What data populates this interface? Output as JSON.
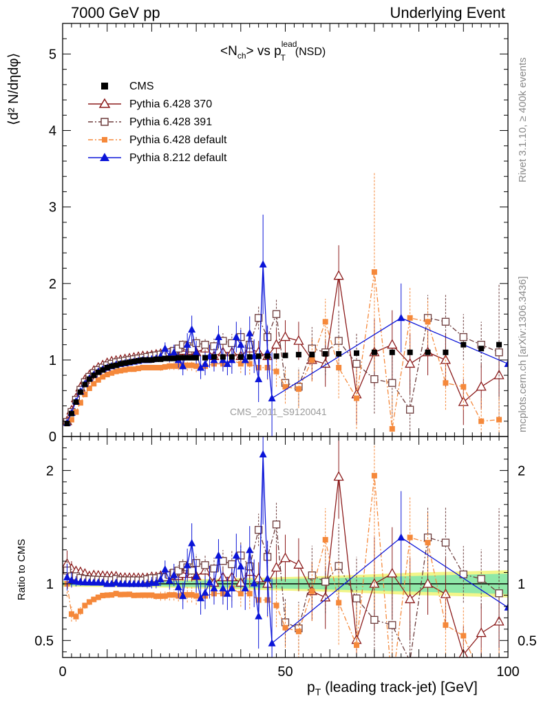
{
  "header": {
    "left": "7000 GeV pp",
    "right": "Underlying Event",
    "rivet": "Rivet 3.1.10, ≥ 400k events",
    "mcplots": "mcplots.cern.ch [arXiv:1306.3436]",
    "watermark": "CMS_2011_S9120041"
  },
  "titles": {
    "main_pre": "<N",
    "main_sub1": "ch",
    "main_mid": "> vs p",
    "main_sup": "lead",
    "main_sub2": "T",
    "main_post": "(NSD)",
    "y_upper": "⟨d² N/dηdφ⟩",
    "y_lower": "Ratio to CMS",
    "x_main": "p",
    "x_sub": "T",
    "x_rest": "(leading track-jet) [GeV]"
  },
  "chart_data": {
    "type": "scatter",
    "xlim": [
      0,
      100
    ],
    "upper": {
      "ylim": [
        0,
        5.4
      ],
      "yticks": [
        "0",
        "1",
        "2",
        "3",
        "4",
        "5"
      ]
    },
    "lower": {
      "ylim": [
        0.35,
        2.3
      ],
      "yticks": [
        "0.5",
        "1",
        "2"
      ]
    },
    "xticks": [
      "0",
      "50",
      "100"
    ],
    "legend": [
      {
        "name": "CMS",
        "color": "#000000",
        "marker": "filled-square",
        "line": "none"
      },
      {
        "name": "Pythia 6.428 370",
        "color": "#8b1a1a",
        "marker": "open-triangle",
        "line": "solid"
      },
      {
        "name": "Pythia 6.428 391",
        "color": "#6b3a3a",
        "marker": "open-square",
        "line": "dashdot"
      },
      {
        "name": "Pythia 6.428 default",
        "color": "#f5883a",
        "marker": "filled-square",
        "line": "dashdot"
      },
      {
        "name": "Pythia 8.212 default",
        "color": "#0a14d8",
        "marker": "filled-triangle",
        "line": "solid"
      }
    ],
    "cms": {
      "x": [
        1,
        2,
        3,
        4,
        5,
        6,
        7,
        8,
        9,
        10,
        11,
        12,
        13,
        14,
        15,
        16,
        17,
        18,
        19,
        20,
        21,
        22,
        23,
        24,
        25,
        26,
        27,
        28,
        29,
        30,
        32,
        34,
        36,
        38,
        40,
        42,
        44,
        46,
        48,
        50,
        53,
        56,
        59,
        62,
        66,
        70,
        74,
        78,
        82,
        86,
        90,
        94,
        98
      ],
      "y": [
        0.17,
        0.3,
        0.45,
        0.58,
        0.68,
        0.75,
        0.8,
        0.84,
        0.87,
        0.9,
        0.92,
        0.93,
        0.95,
        0.96,
        0.97,
        0.98,
        0.99,
        1.0,
        1.0,
        1.0,
        1.01,
        1.01,
        1.02,
        1.02,
        1.02,
        1.03,
        1.03,
        1.03,
        1.03,
        1.03,
        1.03,
        1.04,
        1.04,
        1.04,
        1.04,
        1.04,
        1.05,
        1.05,
        1.05,
        1.06,
        1.07,
        1.07,
        1.08,
        1.08,
        1.09,
        1.1,
        1.1,
        1.1,
        1.1,
        1.1,
        1.2,
        1.15,
        1.2
      ]
    },
    "series": [
      {
        "name": "Pythia 6.428 370",
        "x": [
          1,
          2,
          3,
          4,
          5,
          6,
          7,
          8,
          9,
          10,
          11,
          12,
          13,
          14,
          15,
          16,
          17,
          18,
          19,
          20,
          21,
          22,
          23,
          24,
          25,
          26,
          27,
          28,
          29,
          30,
          32,
          34,
          36,
          38,
          40,
          42,
          44,
          46,
          48,
          50,
          53,
          56,
          59,
          62,
          66,
          70,
          74,
          78,
          82,
          86,
          90,
          94,
          98
        ],
        "y": [
          0.2,
          0.34,
          0.5,
          0.64,
          0.74,
          0.8,
          0.86,
          0.9,
          0.93,
          0.96,
          0.98,
          0.99,
          1.0,
          1.01,
          1.02,
          1.03,
          1.04,
          1.05,
          1.05,
          1.06,
          1.07,
          1.08,
          1.08,
          1.09,
          1.09,
          1.1,
          1.12,
          1.16,
          1.12,
          1.1,
          1.15,
          1.05,
          1.1,
          1.1,
          1.05,
          1.15,
          1.1,
          1.05,
          1.2,
          1.3,
          1.25,
          1.0,
          0.95,
          2.1,
          0.55,
          1.1,
          1.2,
          0.95,
          1.1,
          1.0,
          0.45,
          0.65,
          0.8
        ],
        "err": [
          0.02,
          0.02,
          0.02,
          0.02,
          0.02,
          0.02,
          0.02,
          0.02,
          0.02,
          0.02,
          0.02,
          0.02,
          0.02,
          0.02,
          0.02,
          0.02,
          0.02,
          0.03,
          0.03,
          0.03,
          0.03,
          0.04,
          0.04,
          0.05,
          0.05,
          0.05,
          0.06,
          0.07,
          0.07,
          0.08,
          0.09,
          0.1,
          0.1,
          0.12,
          0.12,
          0.14,
          0.15,
          0.16,
          0.2,
          0.22,
          0.25,
          0.28,
          0.3,
          0.4,
          0.4,
          0.45,
          0.45,
          0.4,
          0.3,
          0.35,
          0.3,
          0.3,
          0.3
        ]
      },
      {
        "name": "Pythia 6.428 391",
        "x": [
          1,
          2,
          3,
          4,
          5,
          6,
          7,
          8,
          9,
          10,
          11,
          12,
          13,
          14,
          15,
          16,
          17,
          18,
          19,
          20,
          21,
          22,
          23,
          24,
          25,
          26,
          27,
          28,
          29,
          30,
          32,
          34,
          36,
          38,
          40,
          42,
          44,
          46,
          48,
          50,
          53,
          56,
          59,
          62,
          66,
          70,
          74,
          78,
          82,
          86,
          90,
          94,
          98
        ],
        "y": [
          0.19,
          0.32,
          0.48,
          0.61,
          0.71,
          0.78,
          0.83,
          0.87,
          0.9,
          0.93,
          0.95,
          0.97,
          0.98,
          0.99,
          1.0,
          1.01,
          1.02,
          1.03,
          1.04,
          1.05,
          1.06,
          1.07,
          1.08,
          1.1,
          1.12,
          1.15,
          1.2,
          1.18,
          1.15,
          1.22,
          1.2,
          1.18,
          1.25,
          1.22,
          1.3,
          1.2,
          1.55,
          1.3,
          1.6,
          0.7,
          0.65,
          1.15,
          1.1,
          1.25,
          0.95,
          0.75,
          0.7,
          0.35,
          1.55,
          1.5,
          1.3,
          1.2,
          1.1
        ],
        "err": [
          0.02,
          0.02,
          0.02,
          0.02,
          0.02,
          0.02,
          0.02,
          0.02,
          0.02,
          0.02,
          0.02,
          0.02,
          0.02,
          0.02,
          0.02,
          0.02,
          0.02,
          0.03,
          0.03,
          0.03,
          0.03,
          0.04,
          0.04,
          0.05,
          0.05,
          0.05,
          0.06,
          0.07,
          0.07,
          0.08,
          0.09,
          0.1,
          0.1,
          0.12,
          0.12,
          0.14,
          0.15,
          0.16,
          0.2,
          0.22,
          0.25,
          0.28,
          0.3,
          0.4,
          0.4,
          0.45,
          0.45,
          0.4,
          0.3,
          0.35,
          0.3,
          0.3,
          0.9
        ]
      },
      {
        "name": "Pythia 6.428 default",
        "x": [
          1,
          2,
          3,
          4,
          5,
          6,
          7,
          8,
          9,
          10,
          11,
          12,
          13,
          14,
          15,
          16,
          17,
          18,
          19,
          20,
          21,
          22,
          23,
          24,
          25,
          26,
          27,
          28,
          29,
          30,
          32,
          34,
          36,
          38,
          40,
          42,
          44,
          46,
          48,
          50,
          53,
          56,
          59,
          62,
          66,
          70,
          74,
          78,
          82,
          86,
          90,
          94,
          98
        ],
        "y": [
          0.17,
          0.22,
          0.32,
          0.44,
          0.55,
          0.63,
          0.69,
          0.74,
          0.78,
          0.81,
          0.83,
          0.85,
          0.86,
          0.87,
          0.88,
          0.88,
          0.89,
          0.9,
          0.9,
          0.9,
          0.9,
          0.9,
          0.91,
          0.92,
          0.92,
          0.92,
          0.93,
          0.93,
          0.93,
          0.92,
          0.92,
          0.95,
          0.95,
          1.0,
          0.95,
          0.95,
          0.9,
          0.9,
          0.85,
          0.65,
          0.62,
          1.0,
          1.5,
          0.9,
          0.5,
          2.15,
          0.1,
          1.55,
          1.5,
          0.7,
          0.65,
          0.2,
          0.22
        ],
        "err": [
          0.02,
          0.02,
          0.02,
          0.02,
          0.02,
          0.02,
          0.02,
          0.02,
          0.02,
          0.02,
          0.02,
          0.02,
          0.02,
          0.02,
          0.02,
          0.02,
          0.02,
          0.03,
          0.03,
          0.03,
          0.03,
          0.04,
          0.04,
          0.05,
          0.05,
          0.05,
          0.06,
          0.07,
          0.07,
          0.08,
          0.09,
          0.1,
          0.1,
          0.12,
          0.12,
          0.14,
          0.15,
          0.16,
          0.2,
          0.22,
          0.25,
          0.28,
          0.3,
          0.4,
          0.4,
          1.3,
          0.45,
          0.4,
          0.3,
          0.35,
          0.3,
          0.3,
          0.3
        ]
      },
      {
        "name": "Pythia 8.212 default",
        "x": [
          1,
          2,
          3,
          4,
          5,
          6,
          7,
          8,
          9,
          10,
          11,
          12,
          13,
          14,
          15,
          16,
          17,
          18,
          19,
          20,
          21,
          22,
          23,
          24,
          25,
          26,
          27,
          28,
          29,
          30,
          31,
          32,
          33,
          34,
          35,
          36,
          37,
          38,
          39,
          40,
          41,
          42,
          43,
          44,
          45,
          46,
          47,
          76,
          100
        ],
        "y": [
          0.18,
          0.31,
          0.46,
          0.59,
          0.69,
          0.76,
          0.81,
          0.85,
          0.88,
          0.9,
          0.92,
          0.94,
          0.95,
          0.96,
          0.97,
          0.98,
          0.99,
          1.0,
          1.0,
          1.01,
          1.02,
          1.05,
          1.15,
          1.05,
          1.1,
          1.0,
          0.92,
          1.2,
          1.4,
          1.1,
          0.9,
          0.95,
          1.05,
          1.0,
          1.3,
          1.0,
          0.95,
          1.0,
          1.3,
          1.2,
          1.0,
          1.35,
          1.05,
          0.75,
          2.25,
          1.1,
          0.5,
          1.55,
          0.95
        ],
        "err": [
          0.02,
          0.02,
          0.02,
          0.02,
          0.02,
          0.02,
          0.02,
          0.02,
          0.02,
          0.02,
          0.02,
          0.02,
          0.02,
          0.02,
          0.03,
          0.03,
          0.03,
          0.03,
          0.04,
          0.05,
          0.05,
          0.06,
          0.08,
          0.08,
          0.1,
          0.1,
          0.12,
          0.15,
          0.18,
          0.15,
          0.15,
          0.15,
          0.15,
          0.15,
          0.15,
          0.15,
          0.15,
          0.18,
          0.2,
          0.2,
          0.2,
          0.22,
          0.22,
          0.3,
          0.65,
          0.35,
          0.6,
          0.45,
          0.3
        ]
      }
    ]
  }
}
